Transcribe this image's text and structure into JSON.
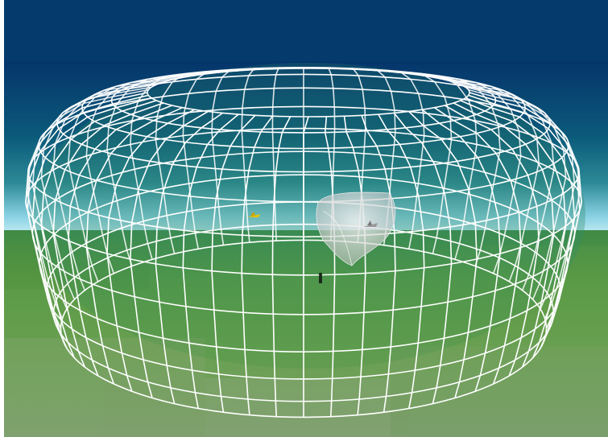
{
  "scene": {
    "description_colors": {
      "sky_top": "#05356b",
      "sky_mid": "#0b4f78",
      "horizon_glow": "#8fd0e6",
      "ground_near": "#5e9a48",
      "ground_far": "#4f8e47",
      "wireframe": "#ffffff",
      "sensor_volume": "#d9d9d9"
    },
    "icons": [
      "aircraft-yellow-icon",
      "aircraft-gray-icon",
      "ground-observer-icon"
    ]
  }
}
